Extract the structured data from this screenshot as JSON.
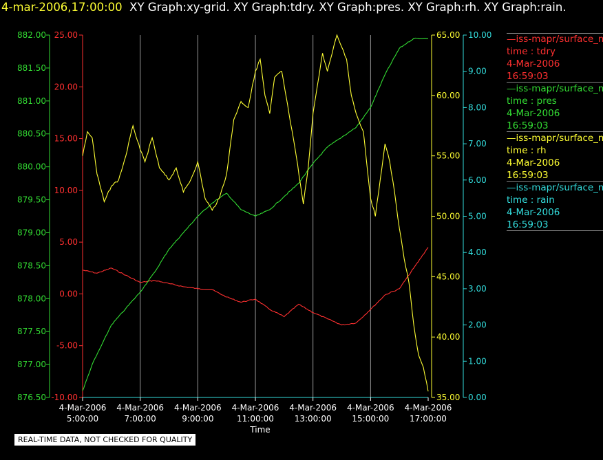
{
  "header": {
    "timestamp": "4-mar-2006,17:00:00",
    "graphs": "XY Graph:xy-grid.  XY Graph:tdry.  XY Graph:pres.  XY Graph:rh.  XY Graph:rain."
  },
  "legend": [
    {
      "source": "—iss-mapr/surface_m",
      "var": "time : tdry",
      "date": "4-Mar-2006",
      "time": "16:59:03",
      "color": "#ff3030"
    },
    {
      "source": "—iss-mapr/surface_m",
      "var": "time : pres",
      "date": "4-Mar-2006",
      "time": "16:59:03",
      "color": "#33dd33"
    },
    {
      "source": "—iss-mapr/surface_m",
      "var": "time : rh",
      "date": "4-Mar-2006",
      "time": "16:59:03",
      "color": "#ffff33"
    },
    {
      "source": "—iss-mapr/surface_m",
      "var": "time : rain",
      "date": "4-Mar-2006",
      "time": "16:59:03",
      "color": "#33dddd"
    }
  ],
  "note": "REAL-TIME DATA, NOT CHECKED FOR QUALITY",
  "chart_data": {
    "type": "line",
    "xlabel": "Time",
    "xlim": [
      "2006-03-04 05:00",
      "2006-03-04 17:00"
    ],
    "x_ticks": [
      {
        "date": "4-Mar-2006",
        "time": "5:00:00"
      },
      {
        "date": "4-Mar-2006",
        "time": "7:00:00"
      },
      {
        "date": "4-Mar-2006",
        "time": "9:00:00"
      },
      {
        "date": "4-Mar-2006",
        "time": "11:00:00"
      },
      {
        "date": "4-Mar-2006",
        "time": "13:00:00"
      },
      {
        "date": "4-Mar-2006",
        "time": "15:00:00"
      },
      {
        "date": "4-Mar-2006",
        "time": "17:00:00"
      }
    ],
    "grid": "vertical",
    "axes": {
      "tdry": {
        "ylim": [
          -10,
          25
        ],
        "ticks": [
          "25.00",
          "20.00",
          "15.00",
          "10.00",
          "5.00",
          "0.00",
          "-5.00",
          "-10.00"
        ],
        "color": "#ff3030",
        "side": "left"
      },
      "pres": {
        "ylim": [
          876.5,
          882.0
        ],
        "ticks": [
          "882.00",
          "881.50",
          "881.00",
          "880.50",
          "880.00",
          "879.50",
          "879.00",
          "878.50",
          "878.00",
          "877.50",
          "877.00",
          "876.50"
        ],
        "color": "#33dd33",
        "side": "left"
      },
      "rh": {
        "ylim": [
          35,
          65
        ],
        "ticks": [
          "65.00",
          "60.00",
          "55.00",
          "50.00",
          "45.00",
          "40.00",
          "35.00"
        ],
        "color": "#ffff33",
        "side": "right"
      },
      "rain": {
        "ylim": [
          0,
          10
        ],
        "ticks": [
          "10.00",
          "9.00",
          "8.00",
          "7.00",
          "6.00",
          "5.00",
          "4.00",
          "3.00",
          "2.00",
          "1.00",
          "0.00"
        ],
        "color": "#33dddd",
        "side": "right"
      }
    },
    "series": [
      {
        "axis": "tdry",
        "color": "#ff3030",
        "x": [
          "2006-03-04 05:00",
          "2006-03-04 05:30",
          "2006-03-04 06:00",
          "2006-03-04 06:30",
          "2006-03-04 07:00",
          "2006-03-04 07:30",
          "2006-03-04 08:00",
          "2006-03-04 08:30",
          "2006-03-04 09:00",
          "2006-03-04 09:30",
          "2006-03-04 10:00",
          "2006-03-04 10:30",
          "2006-03-04 11:00",
          "2006-03-04 11:30",
          "2006-03-04 12:00",
          "2006-03-04 12:30",
          "2006-03-04 13:00",
          "2006-03-04 13:30",
          "2006-03-04 14:00",
          "2006-03-04 14:30",
          "2006-03-04 15:00",
          "2006-03-04 15:30",
          "2006-03-04 16:00",
          "2006-03-04 16:30",
          "2006-03-04 17:00"
        ],
        "y": [
          2.3,
          2.0,
          2.5,
          1.8,
          1.1,
          1.3,
          1.0,
          0.7,
          0.5,
          0.4,
          -0.3,
          -0.8,
          -0.5,
          -1.5,
          -2.2,
          -1.0,
          -1.8,
          -2.4,
          -3.0,
          -2.8,
          -1.5,
          -0.1,
          0.5,
          2.5,
          4.5
        ]
      },
      {
        "axis": "pres",
        "color": "#33dd33",
        "x": [
          "2006-03-04 05:00",
          "2006-03-04 05:20",
          "2006-03-04 05:40",
          "2006-03-04 06:00",
          "2006-03-04 06:30",
          "2006-03-04 07:00",
          "2006-03-04 07:30",
          "2006-03-04 08:00",
          "2006-03-04 08:30",
          "2006-03-04 09:00",
          "2006-03-04 09:30",
          "2006-03-04 10:00",
          "2006-03-04 10:30",
          "2006-03-04 11:00",
          "2006-03-04 11:30",
          "2006-03-04 12:00",
          "2006-03-04 12:30",
          "2006-03-04 13:00",
          "2006-03-04 13:30",
          "2006-03-04 14:00",
          "2006-03-04 14:30",
          "2006-03-04 15:00",
          "2006-03-04 15:30",
          "2006-03-04 16:00",
          "2006-03-04 16:30",
          "2006-03-04 17:00"
        ],
        "y": [
          876.6,
          877.0,
          877.3,
          877.6,
          877.85,
          878.1,
          878.4,
          878.75,
          879.0,
          879.25,
          879.45,
          879.6,
          879.35,
          879.25,
          879.35,
          879.55,
          879.75,
          880.05,
          880.3,
          880.45,
          880.6,
          880.9,
          881.4,
          881.8,
          881.95,
          881.95
        ]
      },
      {
        "axis": "rh",
        "color": "#ffff33",
        "x": [
          "2006-03-04 05:00",
          "2006-03-04 05:10",
          "2006-03-04 05:20",
          "2006-03-04 05:30",
          "2006-03-04 05:45",
          "2006-03-04 06:00",
          "2006-03-04 06:15",
          "2006-03-04 06:30",
          "2006-03-04 06:45",
          "2006-03-04 07:00",
          "2006-03-04 07:10",
          "2006-03-04 07:25",
          "2006-03-04 07:40",
          "2006-03-04 08:00",
          "2006-03-04 08:15",
          "2006-03-04 08:30",
          "2006-03-04 08:45",
          "2006-03-04 09:00",
          "2006-03-04 09:15",
          "2006-03-04 09:30",
          "2006-03-04 09:45",
          "2006-03-04 10:00",
          "2006-03-04 10:15",
          "2006-03-04 10:30",
          "2006-03-04 10:45",
          "2006-03-04 11:00",
          "2006-03-04 11:10",
          "2006-03-04 11:20",
          "2006-03-04 11:30",
          "2006-03-04 11:40",
          "2006-03-04 11:55",
          "2006-03-04 12:10",
          "2006-03-04 12:25",
          "2006-03-04 12:40",
          "2006-03-04 12:50",
          "2006-03-04 13:00",
          "2006-03-04 13:10",
          "2006-03-04 13:20",
          "2006-03-04 13:30",
          "2006-03-04 13:40",
          "2006-03-04 13:50",
          "2006-03-04 14:00",
          "2006-03-04 14:10",
          "2006-03-04 14:20",
          "2006-03-04 14:30",
          "2006-03-04 14:45",
          "2006-03-04 15:00",
          "2006-03-04 15:10",
          "2006-03-04 15:20",
          "2006-03-04 15:30",
          "2006-03-04 15:40",
          "2006-03-04 15:50",
          "2006-03-04 16:00",
          "2006-03-04 16:10",
          "2006-03-04 16:20",
          "2006-03-04 16:30",
          "2006-03-04 16:40",
          "2006-03-04 16:50",
          "2006-03-04 17:00"
        ],
        "y": [
          55.0,
          57.0,
          56.5,
          53.5,
          51.2,
          52.5,
          53.0,
          55.0,
          57.5,
          55.5,
          54.5,
          56.5,
          54.0,
          53.0,
          54.0,
          52.0,
          53.0,
          54.5,
          51.5,
          50.5,
          51.5,
          53.5,
          58.0,
          59.5,
          59.0,
          62.0,
          63.0,
          60.0,
          58.5,
          61.5,
          62.0,
          58.5,
          55.0,
          51.0,
          54.0,
          58.5,
          61.0,
          63.5,
          62.0,
          63.5,
          65.0,
          64.0,
          63.0,
          60.0,
          58.5,
          57.0,
          51.5,
          50.0,
          53.0,
          56.0,
          54.5,
          52.0,
          49.0,
          46.5,
          44.5,
          41.0,
          38.5,
          37.5,
          35.5
        ]
      },
      {
        "axis": "rain",
        "color": "#33dddd",
        "x": [
          "2006-03-04 05:00",
          "2006-03-04 17:00"
        ],
        "y": [
          0.0,
          0.0
        ]
      }
    ]
  }
}
